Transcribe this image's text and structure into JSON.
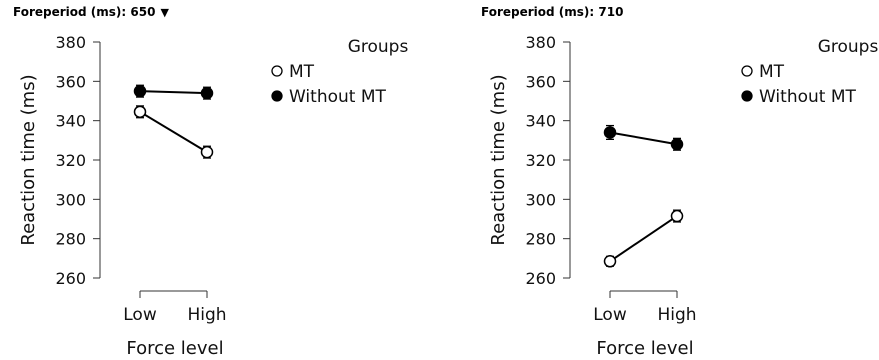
{
  "chart_data": [
    {
      "type": "line",
      "title": "Foreperiod (ms): 650",
      "has_dropdown": true,
      "xlabel": "Force level",
      "ylabel": "Reaction time (ms)",
      "categories": [
        "Low",
        "High"
      ],
      "ylim": [
        260,
        380
      ],
      "yticks": [
        "260",
        "280",
        "300",
        "320",
        "340",
        "360",
        "380"
      ],
      "legend_title": "Groups",
      "legend_position": "top-right",
      "series": [
        {
          "name": "MT",
          "marker": "open",
          "values": [
            344.5,
            324
          ],
          "errors": [
            3,
            3
          ]
        },
        {
          "name": "Without MT",
          "marker": "filled",
          "values": [
            355,
            354
          ],
          "errors": [
            3,
            3
          ]
        }
      ]
    },
    {
      "type": "line",
      "title": "Foreperiod (ms): 710",
      "has_dropdown": false,
      "xlabel": "Force level",
      "ylabel": "Reaction time (ms)",
      "categories": [
        "Low",
        "High"
      ],
      "ylim": [
        260,
        380
      ],
      "yticks": [
        "260",
        "280",
        "300",
        "320",
        "340",
        "360",
        "380"
      ],
      "legend_title": "Groups",
      "legend_position": "top-right",
      "series": [
        {
          "name": "MT",
          "marker": "open",
          "values": [
            268.5,
            291.5
          ],
          "errors": [
            2.5,
            3
          ]
        },
        {
          "name": "Without MT",
          "marker": "filled",
          "values": [
            334,
            328
          ],
          "errors": [
            3.5,
            3
          ]
        }
      ]
    }
  ]
}
